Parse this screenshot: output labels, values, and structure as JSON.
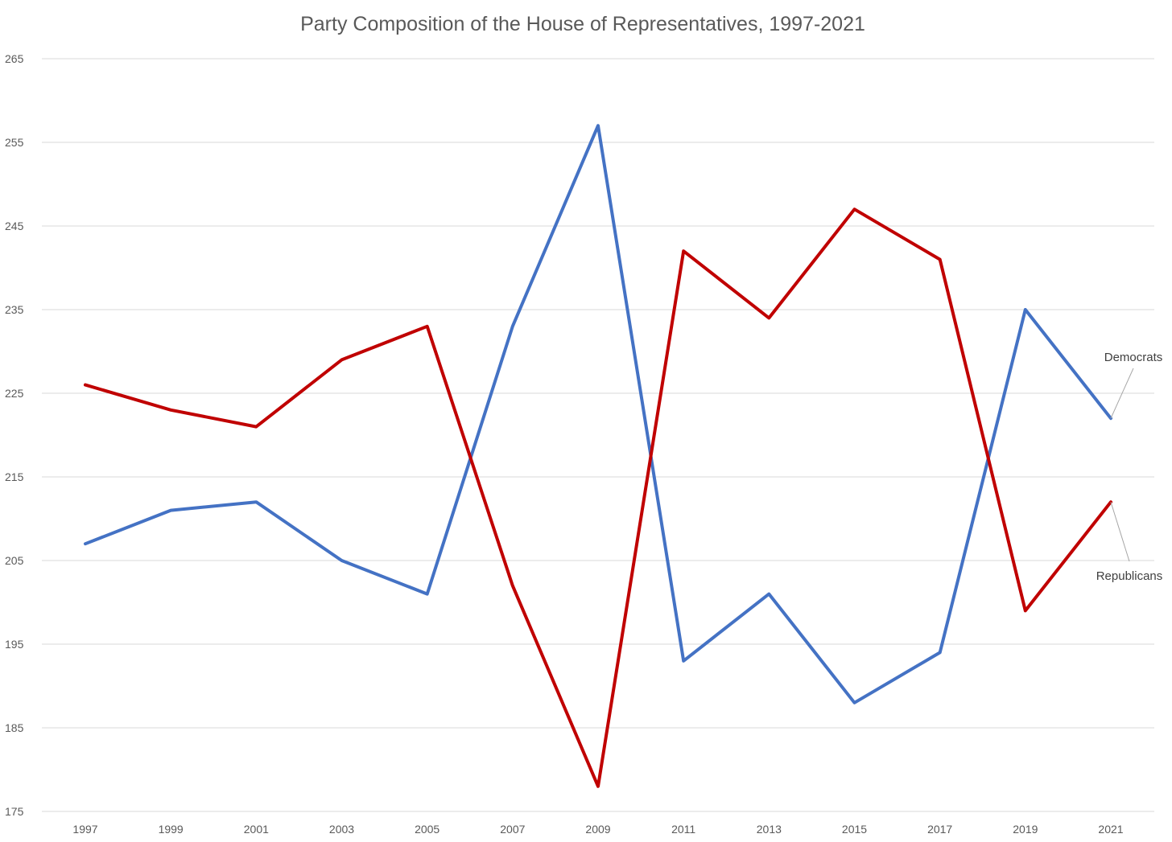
{
  "chart_data": {
    "type": "line",
    "title": "Party Composition of the House of Representatives, 1997-2021",
    "xlabel": "",
    "ylabel": "",
    "categories": [
      "1997",
      "1999",
      "2001",
      "2003",
      "2005",
      "2007",
      "2009",
      "2011",
      "2013",
      "2015",
      "2017",
      "2019",
      "2021"
    ],
    "y_ticks": [
      175,
      185,
      195,
      205,
      215,
      225,
      235,
      245,
      255,
      265
    ],
    "ylim": [
      175,
      265
    ],
    "grid": true,
    "legend": "none (direct labels at right end of lines)",
    "series": [
      {
        "name": "Democrats",
        "color": "#4472c4",
        "values": [
          207,
          211,
          212,
          205,
          201,
          233,
          257,
          193,
          201,
          188,
          194,
          235,
          222
        ]
      },
      {
        "name": "Republicans",
        "color": "#c00000",
        "values": [
          226,
          223,
          221,
          229,
          233,
          202,
          178,
          242,
          234,
          247,
          241,
          199,
          212
        ]
      }
    ]
  }
}
